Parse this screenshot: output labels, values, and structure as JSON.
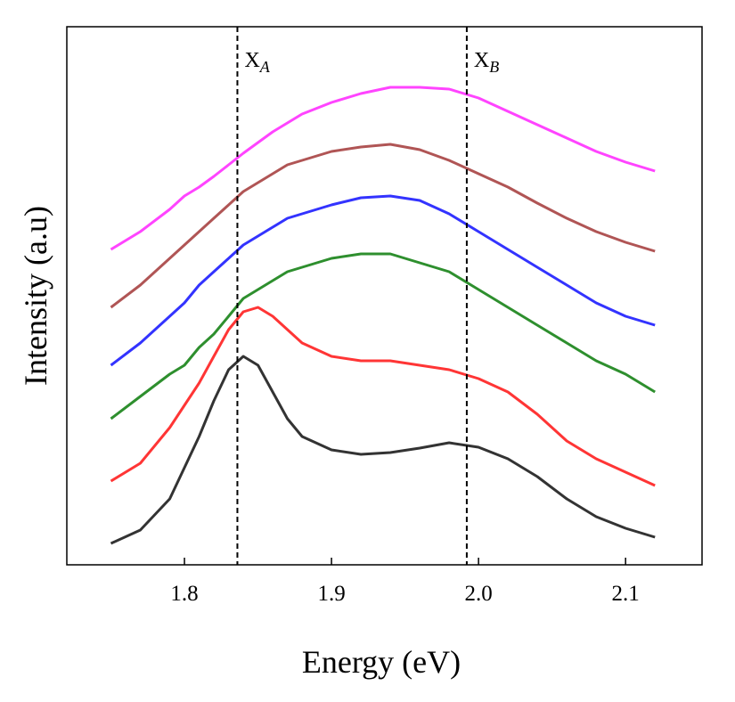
{
  "chart_data": {
    "type": "line",
    "xlabel": "Energy (eV)",
    "ylabel": "Intensity (a.u)",
    "x": [
      1.75,
      1.77,
      1.79,
      1.8,
      1.81,
      1.82,
      1.83,
      1.84,
      1.85,
      1.86,
      1.87,
      1.88,
      1.9,
      1.92,
      1.94,
      1.96,
      1.98,
      2.0,
      2.02,
      2.04,
      2.06,
      2.08,
      2.1,
      2.12
    ],
    "series": [
      {
        "color": "#333333",
        "values": [
          24,
          39,
          74,
          109,
          144,
          184,
          219,
          234,
          224,
          194,
          164,
          144,
          129,
          124,
          126,
          131,
          137,
          132,
          119,
          99,
          74,
          54,
          41,
          31
        ]
      },
      {
        "color": "#ff3535",
        "values": [
          94,
          114,
          154,
          179,
          204,
          234,
          264,
          284,
          289,
          279,
          264,
          249,
          234,
          229,
          229,
          224,
          219,
          209,
          194,
          169,
          139,
          119,
          104,
          89
        ]
      },
      {
        "color": "#2e8f2e",
        "values": [
          164,
          189,
          214,
          224,
          244,
          259,
          279,
          299,
          309,
          319,
          329,
          334,
          344,
          349,
          349,
          339,
          329,
          309,
          289,
          269,
          249,
          229,
          214,
          194
        ]
      },
      {
        "color": "#3333ff",
        "values": [
          224,
          249,
          279,
          294,
          314,
          329,
          344,
          359,
          369,
          379,
          389,
          394,
          404,
          412,
          414,
          409,
          394,
          374,
          354,
          334,
          314,
          294,
          279,
          269
        ]
      },
      {
        "color": "#b05555",
        "values": [
          289,
          314,
          344,
          359,
          374,
          389,
          404,
          419,
          429,
          439,
          449,
          454,
          464,
          469,
          472,
          466,
          454,
          439,
          424,
          406,
          389,
          374,
          362,
          352
        ]
      },
      {
        "color": "#ff44ff",
        "values": [
          354,
          374,
          399,
          414,
          424,
          436,
          449,
          462,
          474,
          486,
          496,
          506,
          519,
          529,
          536,
          536,
          534,
          524,
          509,
          494,
          479,
          464,
          452,
          442
        ]
      }
    ],
    "xlim": [
      1.72,
      2.152
    ],
    "ylim": [
      0,
      604
    ],
    "xticks": [
      1.8,
      1.9,
      {
        "value": 2,
        "label": "2.0"
      },
      2.1
    ],
    "annotations": [
      {
        "text": "X",
        "sub": "A",
        "x": 1.836
      },
      {
        "text": "X",
        "sub": "B",
        "x": 1.992
      }
    ]
  }
}
